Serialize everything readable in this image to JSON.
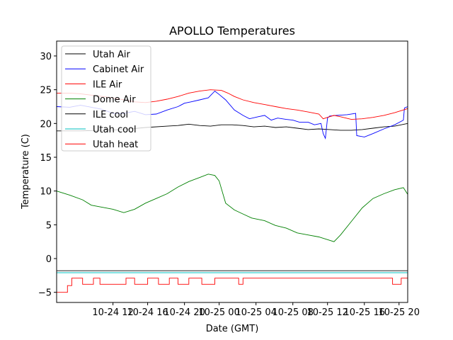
{
  "chart_data": {
    "type": "line",
    "title": "APOLLO Temperatures",
    "xlabel": "Date (GMT)",
    "ylabel": "Temperature (C)",
    "xlim": [
      7.4,
      23.6
    ],
    "ylim": [
      -6.5,
      32.2
    ],
    "yticks": [
      -5,
      0,
      5,
      10,
      15,
      20,
      25,
      30
    ],
    "xticks": [
      {
        "x": 10,
        "label": "10-24 12"
      },
      {
        "x": 11.6,
        "label": "10-24 16"
      },
      {
        "x": 13.3,
        "label": "10-24 20"
      },
      {
        "x": 14.9,
        "label": "10-25 00"
      },
      {
        "x": 16.6,
        "label": "10-25 04"
      },
      {
        "x": 18.3,
        "label": "10-25 08"
      },
      {
        "x": 19.9,
        "label": "10-25 12"
      },
      {
        "x": 21.6,
        "label": "10-25 16"
      },
      {
        "x": 23.2,
        "label": "10-25 20"
      }
    ],
    "legend_position": "top-left",
    "series": [
      {
        "name": "Utah Air",
        "color": "#000000",
        "x": [
          7.4,
          8.5,
          9.5,
          10.5,
          11.5,
          12.5,
          13.0,
          13.5,
          14.0,
          14.5,
          15.0,
          15.5,
          16.0,
          16.5,
          17.0,
          17.5,
          18.0,
          18.5,
          19.0,
          19.5,
          20.0,
          20.5,
          21.0,
          21.5,
          22.0,
          22.5,
          23.0,
          23.6
        ],
        "y": [
          18.9,
          18.9,
          19.0,
          19.1,
          19.4,
          19.6,
          19.7,
          19.9,
          19.7,
          19.6,
          19.8,
          19.8,
          19.7,
          19.5,
          19.6,
          19.4,
          19.5,
          19.3,
          19.1,
          19.2,
          19.1,
          19.0,
          19.0,
          19.1,
          19.3,
          19.5,
          19.6,
          20.0
        ]
      },
      {
        "name": "Cabinet Air",
        "color": "#0000ff",
        "x": [
          7.4,
          8.0,
          8.5,
          9.0,
          9.5,
          10.0,
          10.5,
          11.0,
          11.5,
          12.0,
          12.5,
          13.0,
          13.3,
          13.6,
          14.0,
          14.4,
          14.7,
          14.9,
          15.2,
          15.6,
          16.0,
          16.3,
          16.7,
          17.0,
          17.3,
          17.6,
          18.0,
          18.3,
          18.6,
          19.0,
          19.3,
          19.6,
          19.7,
          19.8,
          19.9,
          20.0,
          20.3,
          20.8,
          21.2,
          21.25,
          21.6,
          22.0,
          22.5,
          23.0,
          23.4,
          23.45,
          23.6
        ],
        "y": [
          22.5,
          22.4,
          22.7,
          22.4,
          22.1,
          21.5,
          21.5,
          21.8,
          21.3,
          21.4,
          22.0,
          22.5,
          23.0,
          23.2,
          23.5,
          23.8,
          24.8,
          24.3,
          23.5,
          22.0,
          21.2,
          20.7,
          21.0,
          21.2,
          20.5,
          20.8,
          20.6,
          20.5,
          20.2,
          20.2,
          19.8,
          20.0,
          18.5,
          17.8,
          20.8,
          21.1,
          21.2,
          21.3,
          21.5,
          18.2,
          18.0,
          18.5,
          19.2,
          19.8,
          20.5,
          22.3,
          22.5
        ]
      },
      {
        "name": "ILE Air",
        "color": "#ff0000",
        "x": [
          7.4,
          8.0,
          8.5,
          9.0,
          9.5,
          10.0,
          10.5,
          11.0,
          11.5,
          12.0,
          12.5,
          13.0,
          13.5,
          14.0,
          14.5,
          15.0,
          15.3,
          15.6,
          16.0,
          16.5,
          17.0,
          17.5,
          18.0,
          18.5,
          19.0,
          19.5,
          19.7,
          19.9,
          20.2,
          20.5,
          21.0,
          21.5,
          22.0,
          22.5,
          23.0,
          23.6
        ],
        "y": [
          24.5,
          24.5,
          24.4,
          24.2,
          24.0,
          23.8,
          23.5,
          23.2,
          23.1,
          23.3,
          23.6,
          24.0,
          24.5,
          24.8,
          25.0,
          24.9,
          24.5,
          24.0,
          23.5,
          23.1,
          22.8,
          22.5,
          22.2,
          22.0,
          21.7,
          21.4,
          20.7,
          20.9,
          21.2,
          21.0,
          20.6,
          20.7,
          20.9,
          21.2,
          21.6,
          22.2
        ]
      },
      {
        "name": "Dome Air",
        "color": "#008000",
        "x": [
          7.4,
          8.0,
          8.6,
          9.0,
          9.5,
          10.0,
          10.5,
          11.0,
          11.5,
          12.0,
          12.5,
          13.0,
          13.5,
          14.0,
          14.4,
          14.7,
          14.9,
          15.2,
          15.6,
          16.0,
          16.4,
          16.7,
          17.0,
          17.5,
          18.0,
          18.5,
          19.0,
          19.5,
          19.9,
          20.2,
          20.5,
          21.0,
          21.5,
          22.0,
          22.5,
          23.0,
          23.4,
          23.6
        ],
        "y": [
          10.0,
          9.4,
          8.7,
          7.9,
          7.6,
          7.3,
          6.8,
          7.3,
          8.2,
          8.9,
          9.6,
          10.6,
          11.4,
          12.0,
          12.5,
          12.3,
          11.5,
          8.2,
          7.2,
          6.6,
          6.0,
          5.8,
          5.6,
          4.9,
          4.5,
          3.8,
          3.5,
          3.2,
          2.8,
          2.5,
          3.5,
          5.5,
          7.5,
          8.9,
          9.6,
          10.2,
          10.5,
          9.5
        ]
      },
      {
        "name": "ILE cool",
        "color": "#000000",
        "x": [
          7.4,
          23.6
        ],
        "y": [
          -1.8,
          -1.8
        ]
      },
      {
        "name": "Utah cool",
        "color": "#00bfbf",
        "x": [
          7.4,
          23.6
        ],
        "y": [
          -2.1,
          -2.1
        ]
      },
      {
        "name": "Utah heat",
        "color": "#ff0000",
        "x": [
          7.4,
          7.9,
          7.9,
          8.1,
          8.1,
          8.6,
          8.6,
          9.1,
          9.1,
          9.4,
          9.4,
          10.6,
          10.6,
          11.0,
          11.0,
          11.6,
          11.6,
          12.1,
          12.1,
          12.6,
          12.6,
          13.0,
          13.0,
          13.5,
          13.5,
          14.1,
          14.1,
          14.7,
          14.7,
          15.8,
          15.8,
          16.0,
          16.0,
          22.9,
          22.9,
          23.3,
          23.3,
          23.6,
          23.6
        ],
        "y": [
          -5,
          -5,
          -4,
          -4,
          -2.9,
          -2.9,
          -3.8,
          -3.8,
          -2.9,
          -2.9,
          -3.8,
          -3.8,
          -2.9,
          -2.9,
          -3.8,
          -3.8,
          -2.9,
          -2.9,
          -3.8,
          -3.8,
          -2.9,
          -2.9,
          -3.8,
          -3.8,
          -2.9,
          -2.9,
          -3.8,
          -3.8,
          -2.9,
          -2.9,
          -3.8,
          -3.8,
          -2.9,
          -2.9,
          -3.8,
          -3.8,
          -2.9,
          -2.9,
          -3.8
        ]
      }
    ]
  }
}
